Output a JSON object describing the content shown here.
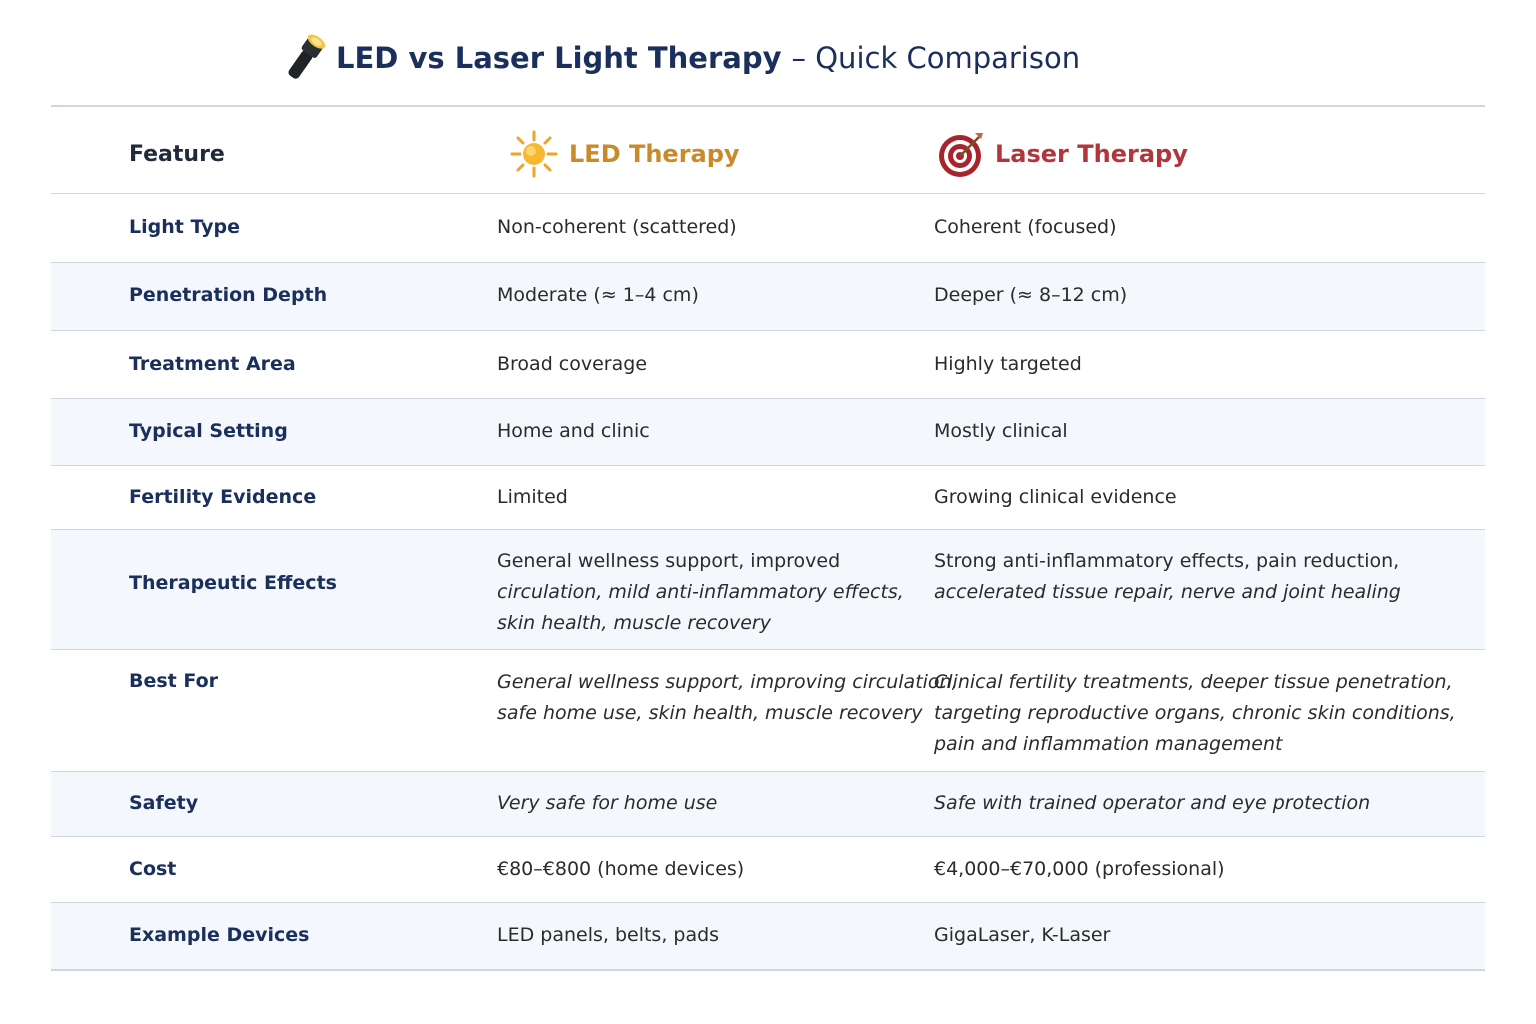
{
  "title": {
    "main": "LED vs Laser Light Therapy",
    "sub": "– Quick Comparison",
    "icon": "flashlight-icon"
  },
  "header": {
    "feature": "Feature",
    "led": "LED Therapy",
    "laser": "Laser Therapy",
    "led_icon": "sun-icon",
    "laser_icon": "target-icon"
  },
  "rows": [
    {
      "feature": "Light Type",
      "led": "Non-coherent (scattered)",
      "laser": "Coherent (focused)"
    },
    {
      "feature": "Penetration Depth",
      "led": "Moderate (≈ 1–4 cm)",
      "laser": "Deeper (≈ 8–12 cm)"
    },
    {
      "feature": "Treatment Area",
      "led": "Broad coverage",
      "laser": "Highly targeted"
    },
    {
      "feature": "Typical Setting",
      "led": "Home and clinic",
      "laser": "Mostly clinical"
    },
    {
      "feature": "Fertility Evidence",
      "led": "Limited",
      "laser": "Growing clinical evidence"
    },
    {
      "feature": "Therapeutic Effects",
      "led": [
        "General wellness support, improved",
        "circulation, mild anti-inflammatory effects,",
        "skin health, muscle recovery"
      ],
      "laser": [
        "Strong anti-inflammatory effects, pain reduction,",
        "accelerated tissue repair, nerve and joint healing"
      ]
    },
    {
      "feature": "Best For",
      "led": [
        "General wellness support, improving circulation,",
        "safe home use, skin health, muscle recovery"
      ],
      "laser": [
        "Clinical fertility treatments, deeper tissue penetration,",
        "targeting reproductive organs, chronic skin conditions,",
        "pain and inflammation management"
      ]
    },
    {
      "feature": "Safety",
      "led": "Very safe for home use",
      "laser": "Safe with trained operator and eye protection"
    },
    {
      "feature": "Cost",
      "led": "€80–€800 (home devices)",
      "laser": "€4,000–€70,000 (professional)"
    },
    {
      "feature": "Example Devices",
      "led": "LED panels, belts, pads",
      "laser": "GigaLaser, K-Laser"
    }
  ],
  "colors": {
    "navy": "#1b2f5c",
    "led_accent": "#c88a2a",
    "laser_accent": "#b0353c",
    "row_alt": "#f4f7fb",
    "rule": "#cfd6e2"
  }
}
